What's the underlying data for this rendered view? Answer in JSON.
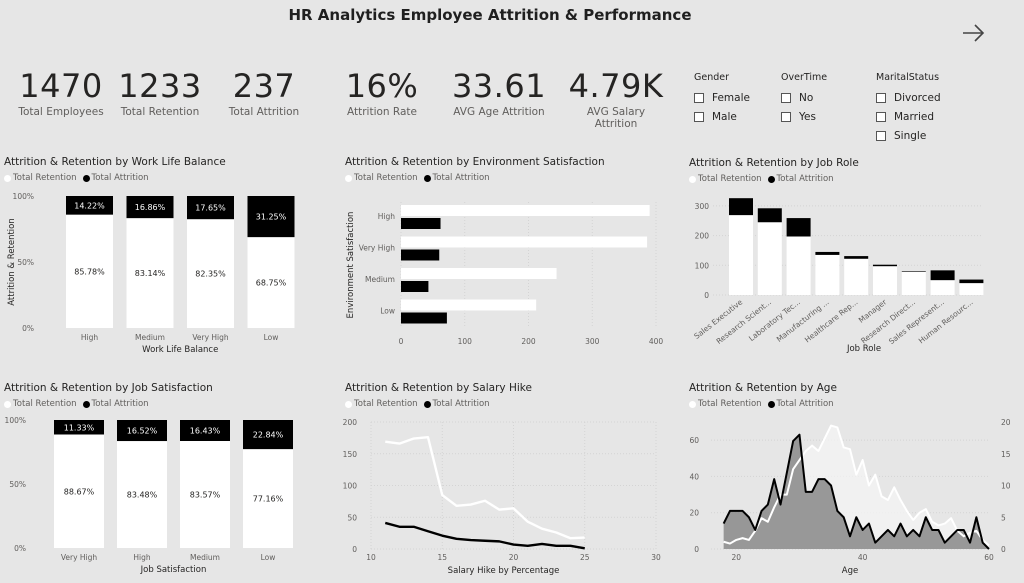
{
  "title": "HR Analytics Employee Attrition & Performance",
  "kpis": [
    {
      "value": "1470",
      "label": "Total Employees"
    },
    {
      "value": "1233",
      "label": "Total Retention"
    },
    {
      "value": "237",
      "label": "Total Attrition"
    },
    {
      "value": "16%",
      "label": "Attrition Rate"
    },
    {
      "value": "33.61",
      "label": "AVG Age Attrition"
    },
    {
      "value": "4.79K",
      "label": "AVG Salary Attrition"
    }
  ],
  "slicers": [
    {
      "title": "Gender",
      "items": [
        "Female",
        "Male"
      ]
    },
    {
      "title": "OverTime",
      "items": [
        "No",
        "Yes"
      ]
    },
    {
      "title": "MaritalStatus",
      "items": [
        "Divorced",
        "Married",
        "Single"
      ]
    }
  ],
  "legend": {
    "retention": "Total Retention",
    "attrition": "Total Attrition"
  },
  "colors": {
    "retention": "#ffffff",
    "attrition": "#000000",
    "background": "#e6e6e6",
    "area": "#888888"
  },
  "icons": {
    "nav": "arrow-right-icon"
  },
  "chart_data": [
    {
      "id": "wlb",
      "type": "bar",
      "stacked": "100%",
      "title": "Attrition & Retention by Work Life Balance",
      "xlabel": "Work Life Balance",
      "ylabel": "Attrition & Retention",
      "yticks": [
        "0%",
        "50%",
        "100%"
      ],
      "categories": [
        "High",
        "Medium",
        "Very High",
        "Low"
      ],
      "series": [
        {
          "name": "Total Retention",
          "values": [
            85.78,
            83.14,
            82.35,
            68.75
          ],
          "labels": [
            "85.78%",
            "83.14%",
            "82.35%",
            "68.75%"
          ]
        },
        {
          "name": "Total Attrition",
          "values": [
            14.22,
            16.86,
            17.65,
            31.25
          ],
          "labels": [
            "14.22%",
            "16.86%",
            "17.65%",
            "31.25%"
          ]
        }
      ]
    },
    {
      "id": "env",
      "type": "bar",
      "orientation": "horizontal",
      "title": "Attrition & Retention by Environment Satisfaction",
      "ylabel": "Environment Satisfaction",
      "xlim": [
        0,
        400
      ],
      "xticks": [
        "0",
        "100",
        "200",
        "300",
        "400"
      ],
      "categories": [
        "High",
        "Very High",
        "Medium",
        "Low"
      ],
      "series": [
        {
          "name": "Total Retention",
          "values": [
            390,
            386,
            244,
            212
          ]
        },
        {
          "name": "Total Attrition",
          "values": [
            62,
            60,
            43,
            72
          ]
        }
      ]
    },
    {
      "id": "role",
      "type": "bar",
      "stacked": true,
      "title": "Attrition & Retention by Job Role",
      "xlabel": "Job Role",
      "ylim": [
        0,
        330
      ],
      "yticks": [
        "0",
        "100",
        "200",
        "300"
      ],
      "categories": [
        "Sales Executive",
        "Research Scient...",
        "Laboratory Tec...",
        "Manufacturing ...",
        "Healthcare Rep...",
        "Manager",
        "Research Direct...",
        "Sales Represent...",
        "Human Resourc..."
      ],
      "series": [
        {
          "name": "Total Retention",
          "values": [
            269,
            245,
            197,
            135,
            122,
            97,
            78,
            50,
            40
          ]
        },
        {
          "name": "Total Attrition",
          "values": [
            57,
            47,
            62,
            10,
            9,
            5,
            2,
            33,
            12
          ]
        }
      ]
    },
    {
      "id": "js",
      "type": "bar",
      "stacked": "100%",
      "title": "Attrition & Retention by Job Satisfaction",
      "xlabel": "Job Satisfaction",
      "yticks": [
        "0%",
        "50%",
        "100%"
      ],
      "categories": [
        "Very High",
        "High",
        "Medium",
        "Low"
      ],
      "series": [
        {
          "name": "Total Retention",
          "values": [
            88.67,
            83.48,
            83.57,
            77.16
          ],
          "labels": [
            "88.67%",
            "83.48%",
            "83.57%",
            "77.16%"
          ]
        },
        {
          "name": "Total Attrition",
          "values": [
            11.33,
            16.52,
            16.43,
            22.84
          ],
          "labels": [
            "11.33%",
            "16.52%",
            "16.43%",
            "22.84%"
          ]
        }
      ]
    },
    {
      "id": "hike",
      "type": "line",
      "title": "Attrition & Retention by Salary Hike",
      "xlabel": "Salary Hike by Percentage",
      "xlim": [
        10,
        30
      ],
      "ylim": [
        0,
        200
      ],
      "xticks": [
        "10",
        "15",
        "20",
        "25",
        "30"
      ],
      "yticks": [
        "0",
        "50",
        "100",
        "150",
        "200"
      ],
      "x": [
        11,
        12,
        13,
        14,
        15,
        16,
        17,
        18,
        19,
        20,
        21,
        22,
        23,
        24,
        25
      ],
      "series": [
        {
          "name": "Total Retention",
          "values": [
            169,
            166,
            174,
            176,
            85,
            68,
            70,
            76,
            62,
            64,
            43,
            32,
            26,
            17,
            18
          ]
        },
        {
          "name": "Total Attrition",
          "values": [
            41,
            35,
            35,
            28,
            21,
            16,
            14,
            13,
            12,
            7,
            5,
            8,
            5,
            5,
            1
          ]
        }
      ]
    },
    {
      "id": "age",
      "type": "area",
      "title": "Attrition & Retention by Age",
      "xlabel": "Age",
      "xlim": [
        16,
        60
      ],
      "ylim": [
        0,
        70
      ],
      "y2lim": [
        0,
        20
      ],
      "xticks": [
        "20",
        "40",
        "60"
      ],
      "yticks": [
        "0",
        "20",
        "40",
        "60"
      ],
      "y2ticks": [
        "0",
        "5",
        "10",
        "15",
        "20"
      ],
      "x": [
        18,
        19,
        20,
        21,
        22,
        23,
        24,
        25,
        26,
        27,
        28,
        29,
        30,
        31,
        32,
        33,
        34,
        35,
        36,
        37,
        38,
        39,
        40,
        41,
        42,
        43,
        44,
        45,
        46,
        47,
        48,
        49,
        50,
        51,
        52,
        53,
        54,
        55,
        56,
        57,
        58,
        59,
        60
      ],
      "series": [
        {
          "name": "Total Retention",
          "axis": "left",
          "values": [
            4,
            3,
            5,
            6,
            5,
            10,
            17,
            15,
            23,
            30,
            30,
            44,
            49,
            54,
            57,
            54,
            61,
            68,
            67,
            56,
            55,
            41,
            49,
            35,
            41,
            29,
            27,
            34,
            27,
            21,
            16,
            20,
            22,
            15,
            13,
            14,
            17,
            10,
            7,
            9,
            10,
            5,
            2
          ]
        },
        {
          "name": "Total Attrition",
          "axis": "right",
          "values": [
            4,
            6,
            6,
            6,
            5,
            3,
            6,
            7,
            11,
            7,
            12,
            17,
            18,
            9,
            9,
            11,
            11,
            10,
            6,
            5,
            2,
            5,
            3,
            4,
            1,
            2,
            3,
            2,
            4,
            2,
            3,
            2,
            5,
            3,
            3,
            1,
            2,
            3,
            3,
            1,
            5,
            1,
            0
          ]
        }
      ]
    }
  ]
}
